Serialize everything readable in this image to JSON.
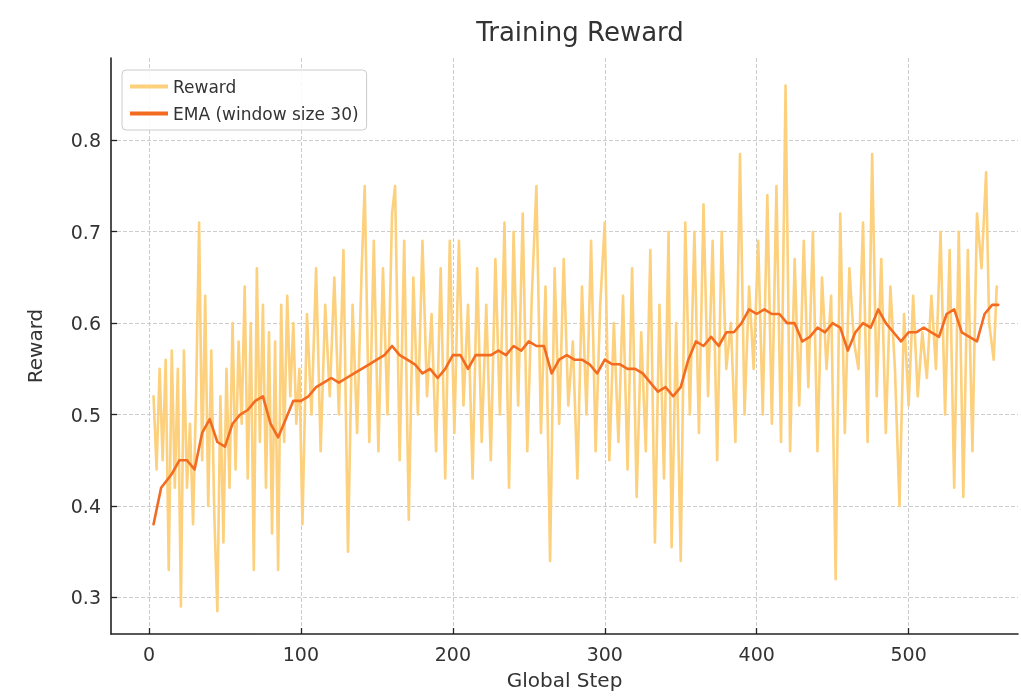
{
  "chart_data": {
    "type": "line",
    "title": "Training Reward",
    "xlabel": "Global Step",
    "ylabel": "Reward",
    "xlim": [
      -25,
      572
    ],
    "xticks": [
      0,
      100,
      200,
      300,
      400,
      500
    ],
    "ylim": [
      0.26,
      0.89
    ],
    "yticks": [
      0.3,
      0.4,
      0.5,
      0.6,
      0.7,
      0.8
    ],
    "grid": true,
    "legend": "top left",
    "marker": "none",
    "line_style": "solid",
    "series": [
      {
        "name": "Reward",
        "color": "#fcd07c",
        "x": [
          3,
          5,
          7,
          9,
          11,
          13,
          15,
          17,
          19,
          21,
          23,
          25,
          27,
          29,
          31,
          33,
          35,
          37,
          39,
          41,
          43,
          45,
          47,
          49,
          51,
          53,
          55,
          57,
          59,
          61,
          63,
          65,
          67,
          69,
          71,
          73,
          75,
          77,
          79,
          81,
          83,
          85,
          87,
          89,
          91,
          93,
          95,
          97,
          99,
          101,
          104,
          107,
          110,
          113,
          116,
          119,
          122,
          125,
          128,
          131,
          134,
          137,
          140,
          142,
          145,
          148,
          151,
          154,
          157,
          160,
          162,
          165,
          168,
          171,
          174,
          177,
          180,
          183,
          186,
          189,
          192,
          195,
          198,
          201,
          204,
          207,
          210,
          213,
          216,
          219,
          222,
          225,
          228,
          231,
          234,
          237,
          240,
          243,
          246,
          249,
          252,
          255,
          258,
          261,
          264,
          267,
          270,
          273,
          276,
          279,
          282,
          285,
          288,
          291,
          294,
          297,
          300,
          303,
          306,
          309,
          312,
          315,
          318,
          321,
          324,
          327,
          330,
          333,
          336,
          339,
          342,
          344,
          347,
          350,
          353,
          356,
          359,
          362,
          365,
          368,
          371,
          374,
          377,
          380,
          383,
          386,
          389,
          392,
          395,
          398,
          401,
          404,
          407,
          410,
          413,
          416,
          419,
          422,
          425,
          428,
          431,
          434,
          437,
          440,
          443,
          446,
          449,
          452,
          455,
          458,
          461,
          464,
          467,
          470,
          473,
          476,
          479,
          482,
          485,
          488,
          491,
          494,
          497,
          500,
          503,
          506,
          509,
          512,
          515,
          518,
          521,
          524,
          527,
          530,
          533,
          536,
          539,
          542,
          545,
          548,
          551,
          553,
          556,
          558
        ],
        "values": [
          0.52,
          0.44,
          0.55,
          0.45,
          0.56,
          0.33,
          0.57,
          0.42,
          0.55,
          0.29,
          0.57,
          0.42,
          0.49,
          0.38,
          0.52,
          0.71,
          0.45,
          0.63,
          0.4,
          0.57,
          0.39,
          0.285,
          0.52,
          0.36,
          0.55,
          0.42,
          0.6,
          0.44,
          0.58,
          0.49,
          0.64,
          0.43,
          0.6,
          0.33,
          0.66,
          0.47,
          0.62,
          0.42,
          0.59,
          0.37,
          0.58,
          0.33,
          0.62,
          0.47,
          0.63,
          0.52,
          0.6,
          0.49,
          0.55,
          0.38,
          0.61,
          0.5,
          0.66,
          0.46,
          0.62,
          0.52,
          0.65,
          0.5,
          0.68,
          0.35,
          0.62,
          0.48,
          0.66,
          0.75,
          0.47,
          0.69,
          0.46,
          0.66,
          0.5,
          0.72,
          0.75,
          0.45,
          0.69,
          0.385,
          0.65,
          0.5,
          0.69,
          0.52,
          0.61,
          0.46,
          0.66,
          0.43,
          0.69,
          0.48,
          0.69,
          0.51,
          0.62,
          0.43,
          0.66,
          0.47,
          0.62,
          0.45,
          0.67,
          0.5,
          0.71,
          0.42,
          0.7,
          0.51,
          0.72,
          0.46,
          0.63,
          0.75,
          0.48,
          0.64,
          0.34,
          0.66,
          0.49,
          0.67,
          0.51,
          0.58,
          0.43,
          0.64,
          0.5,
          0.69,
          0.46,
          0.62,
          0.71,
          0.45,
          0.6,
          0.47,
          0.63,
          0.44,
          0.66,
          0.41,
          0.59,
          0.46,
          0.68,
          0.36,
          0.62,
          0.43,
          0.7,
          0.355,
          0.6,
          0.34,
          0.71,
          0.5,
          0.7,
          0.48,
          0.73,
          0.52,
          0.69,
          0.45,
          0.7,
          0.55,
          0.6,
          0.47,
          0.785,
          0.5,
          0.64,
          0.55,
          0.69,
          0.5,
          0.74,
          0.49,
          0.75,
          0.47,
          0.86,
          0.46,
          0.67,
          0.51,
          0.69,
          0.53,
          0.7,
          0.46,
          0.65,
          0.55,
          0.63,
          0.32,
          0.72,
          0.48,
          0.66,
          0.58,
          0.55,
          0.71,
          0.47,
          0.785,
          0.52,
          0.67,
          0.48,
          0.64,
          0.55,
          0.4,
          0.61,
          0.51,
          0.63,
          0.52,
          0.59,
          0.54,
          0.63,
          0.55,
          0.7,
          0.5,
          0.68,
          0.42,
          0.7,
          0.41,
          0.68,
          0.46,
          0.72,
          0.66,
          0.765,
          0.6,
          0.56,
          0.64
        ]
      },
      {
        "name": "EMA (window size 30)",
        "color": "#f26b21",
        "x": [
          3,
          8,
          15,
          20,
          25,
          30,
          35,
          40,
          45,
          50,
          55,
          60,
          65,
          70,
          75,
          80,
          85,
          90,
          95,
          100,
          105,
          110,
          115,
          120,
          125,
          130,
          135,
          140,
          145,
          150,
          155,
          160,
          165,
          170,
          175,
          180,
          185,
          190,
          195,
          200,
          205,
          210,
          215,
          220,
          225,
          230,
          235,
          240,
          245,
          250,
          255,
          260,
          265,
          270,
          275,
          280,
          285,
          290,
          295,
          300,
          305,
          310,
          315,
          320,
          325,
          330,
          335,
          340,
          345,
          350,
          355,
          360,
          365,
          370,
          375,
          380,
          385,
          390,
          395,
          400,
          405,
          410,
          415,
          420,
          425,
          430,
          435,
          440,
          445,
          450,
          455,
          460,
          465,
          470,
          475,
          480,
          485,
          490,
          495,
          500,
          505,
          510,
          515,
          520,
          525,
          530,
          535,
          540,
          545,
          550,
          555,
          559
        ],
        "values": [
          0.38,
          0.42,
          0.435,
          0.45,
          0.45,
          0.44,
          0.48,
          0.495,
          0.47,
          0.465,
          0.49,
          0.5,
          0.505,
          0.515,
          0.52,
          0.49,
          0.475,
          0.495,
          0.515,
          0.515,
          0.52,
          0.53,
          0.535,
          0.54,
          0.535,
          0.54,
          0.545,
          0.55,
          0.555,
          0.56,
          0.565,
          0.575,
          0.565,
          0.56,
          0.555,
          0.545,
          0.55,
          0.54,
          0.55,
          0.565,
          0.565,
          0.55,
          0.565,
          0.565,
          0.565,
          0.57,
          0.565,
          0.575,
          0.57,
          0.58,
          0.575,
          0.575,
          0.545,
          0.56,
          0.565,
          0.56,
          0.56,
          0.555,
          0.545,
          0.56,
          0.555,
          0.555,
          0.55,
          0.55,
          0.545,
          0.535,
          0.525,
          0.53,
          0.52,
          0.53,
          0.56,
          0.58,
          0.575,
          0.585,
          0.575,
          0.59,
          0.59,
          0.6,
          0.615,
          0.61,
          0.615,
          0.61,
          0.61,
          0.6,
          0.6,
          0.58,
          0.585,
          0.595,
          0.59,
          0.6,
          0.595,
          0.57,
          0.59,
          0.6,
          0.595,
          0.615,
          0.6,
          0.59,
          0.58,
          0.59,
          0.59,
          0.595,
          0.59,
          0.585,
          0.61,
          0.615,
          0.59,
          0.585,
          0.58,
          0.61,
          0.62,
          0.62
        ]
      }
    ]
  }
}
